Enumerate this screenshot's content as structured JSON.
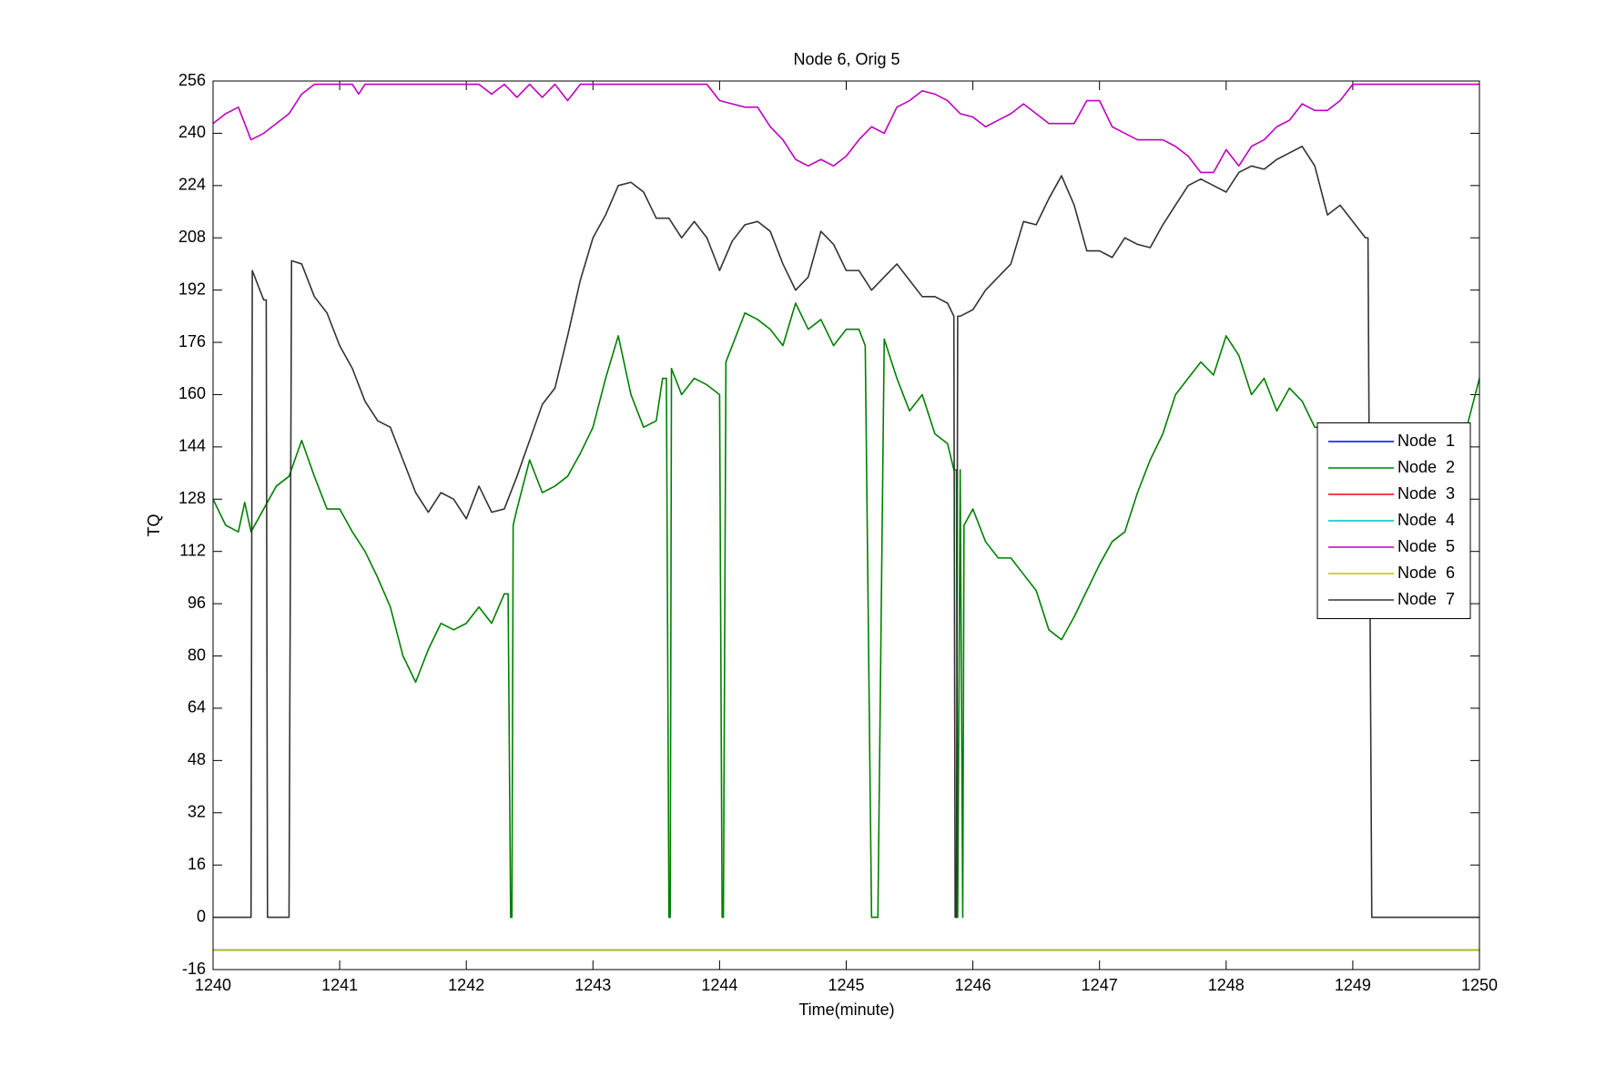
{
  "chart_data": {
    "type": "line",
    "title": "Node 6, Orig 5",
    "xlabel": "Time(minute)",
    "ylabel": "TQ",
    "xlim": [
      1240,
      1250
    ],
    "xticks": [
      1240,
      1241,
      1242,
      1243,
      1244,
      1245,
      1246,
      1247,
      1248,
      1249,
      1250
    ],
    "ylim": [
      -16,
      256
    ],
    "yticks": [
      -16,
      0,
      16,
      32,
      48,
      64,
      80,
      96,
      112,
      128,
      144,
      160,
      176,
      192,
      208,
      224,
      240,
      256
    ],
    "grid": false,
    "legend": "east",
    "series": [
      {
        "name": "Node  1",
        "color": "#0000ff",
        "x": [
          1240,
          1250
        ],
        "values": [
          -10,
          -10
        ]
      },
      {
        "name": "Node  2",
        "color": "#008000",
        "x": [
          1240,
          1240.1,
          1240.2,
          1240.25,
          1240.3,
          1240.4,
          1240.5,
          1240.6,
          1240.7,
          1240.8,
          1240.9,
          1241,
          1241.1,
          1241.2,
          1241.3,
          1241.4,
          1241.5,
          1241.6,
          1241.7,
          1241.8,
          1241.9,
          1242,
          1242.1,
          1242.2,
          1242.3,
          1242.33,
          1242.35,
          1242.36,
          1242.37,
          1242.4,
          1242.5,
          1242.6,
          1242.7,
          1242.8,
          1242.9,
          1243,
          1243.1,
          1243.2,
          1243.3,
          1243.4,
          1243.5,
          1243.55,
          1243.58,
          1243.6,
          1243.61,
          1243.62,
          1243.7,
          1243.8,
          1243.9,
          1244,
          1244.02,
          1244.03,
          1244.05,
          1244.1,
          1244.2,
          1244.3,
          1244.4,
          1244.5,
          1244.6,
          1244.7,
          1244.8,
          1244.9,
          1245,
          1245.1,
          1245.15,
          1245.2,
          1245.25,
          1245.3,
          1245.4,
          1245.5,
          1245.6,
          1245.7,
          1245.8,
          1245.85,
          1245.87,
          1245.88,
          1245.9,
          1245.92,
          1245.93,
          1246,
          1246.1,
          1246.2,
          1246.3,
          1246.4,
          1246.5,
          1246.6,
          1246.7,
          1246.8,
          1246.9,
          1247,
          1247.1,
          1247.2,
          1247.3,
          1247.4,
          1247.5,
          1247.6,
          1247.7,
          1247.8,
          1247.9,
          1248,
          1248.1,
          1248.2,
          1248.3,
          1248.4,
          1248.5,
          1248.6,
          1248.7,
          1248.8,
          1248.9,
          1249,
          1249.1,
          1249.2,
          1249.3,
          1249.5,
          1249.7,
          1249.8,
          1249.9,
          1250
        ],
        "values": [
          128,
          120,
          118,
          127,
          118,
          125,
          132,
          135,
          146,
          135,
          125,
          125,
          118,
          112,
          104,
          95,
          80,
          72,
          82,
          90,
          88,
          90,
          95,
          90,
          99,
          99,
          0,
          0,
          120,
          125,
          140,
          130,
          132,
          135,
          142,
          150,
          165,
          178,
          160,
          150,
          152,
          165,
          165,
          0,
          0,
          168,
          160,
          165,
          163,
          160,
          0,
          0,
          170,
          175,
          185,
          183,
          180,
          175,
          188,
          180,
          183,
          175,
          180,
          180,
          175,
          0,
          0,
          177,
          165,
          155,
          160,
          148,
          145,
          137,
          137,
          0,
          137,
          0,
          120,
          125,
          115,
          110,
          110,
          105,
          100,
          88,
          85,
          92,
          100,
          108,
          115,
          118,
          130,
          140,
          148,
          160,
          165,
          170,
          166,
          178,
          172,
          160,
          165,
          155,
          162,
          158,
          150,
          150,
          150,
          150,
          145,
          148,
          145,
          146,
          144,
          145,
          150,
          165
        ]
      },
      {
        "name": "Node  3",
        "color": "#ff0000",
        "x": [
          1240,
          1250
        ],
        "values": [
          -10,
          -10
        ]
      },
      {
        "name": "Node  4",
        "color": "#00bfbf",
        "x": [
          1240,
          1250
        ],
        "values": [
          -10,
          -10
        ]
      },
      {
        "name": "Node  5",
        "color": "#bf00bf",
        "x": [
          1240,
          1240.1,
          1240.2,
          1240.3,
          1240.4,
          1240.5,
          1240.6,
          1240.7,
          1240.8,
          1241.1,
          1241.15,
          1241.2,
          1242.1,
          1242.2,
          1242.3,
          1242.4,
          1242.5,
          1242.6,
          1242.7,
          1242.8,
          1242.9,
          1243.9,
          1244,
          1244.1,
          1244.2,
          1244.3,
          1244.4,
          1244.5,
          1244.6,
          1244.7,
          1244.8,
          1244.9,
          1245,
          1245.1,
          1245.2,
          1245.3,
          1245.4,
          1245.5,
          1245.6,
          1245.7,
          1245.8,
          1245.9,
          1246,
          1246.1,
          1246.2,
          1246.3,
          1246.4,
          1246.5,
          1246.6,
          1246.7,
          1246.8,
          1246.9,
          1247,
          1247.1,
          1247.2,
          1247.3,
          1247.4,
          1247.5,
          1247.6,
          1247.7,
          1247.8,
          1247.9,
          1248,
          1248.1,
          1248.2,
          1248.3,
          1248.4,
          1248.5,
          1248.6,
          1248.7,
          1248.8,
          1248.9,
          1249,
          1250
        ],
        "values": [
          243,
          246,
          248,
          238,
          240,
          243,
          246,
          252,
          255,
          255,
          252,
          255,
          255,
          252,
          255,
          251,
          255,
          251,
          255,
          250,
          255,
          255,
          250,
          249,
          248,
          248,
          242,
          238,
          232,
          230,
          232,
          230,
          233,
          238,
          242,
          240,
          248,
          250,
          253,
          252,
          250,
          246,
          245,
          242,
          244,
          246,
          249,
          246,
          243,
          243,
          243,
          250,
          250,
          242,
          240,
          238,
          238,
          238,
          236,
          233,
          228,
          228,
          235,
          230,
          236,
          238,
          242,
          244,
          249,
          247,
          247,
          250,
          255,
          255
        ]
      },
      {
        "name": "Node  6",
        "color": "#bfbf00",
        "x": [
          1240,
          1250
        ],
        "values": [
          -10,
          -10
        ]
      },
      {
        "name": "Node  7",
        "color": "#333333",
        "x": [
          1240,
          1240.3,
          1240.31,
          1240.4,
          1240.42,
          1240.43,
          1240.6,
          1240.62,
          1240.7,
          1240.8,
          1240.9,
          1241,
          1241.1,
          1241.2,
          1241.3,
          1241.4,
          1241.5,
          1241.6,
          1241.7,
          1241.8,
          1241.9,
          1242,
          1242.1,
          1242.2,
          1242.3,
          1242.4,
          1242.5,
          1242.6,
          1242.7,
          1242.8,
          1242.9,
          1243,
          1243.1,
          1243.2,
          1243.3,
          1243.4,
          1243.5,
          1243.6,
          1243.7,
          1243.8,
          1243.9,
          1244,
          1244.1,
          1244.2,
          1244.3,
          1244.4,
          1244.5,
          1244.6,
          1244.7,
          1244.8,
          1244.9,
          1245,
          1245.1,
          1245.2,
          1245.3,
          1245.4,
          1245.5,
          1245.6,
          1245.7,
          1245.8,
          1245.85,
          1245.86,
          1245.87,
          1245.88,
          1245.9,
          1246,
          1246.1,
          1246.2,
          1246.3,
          1246.4,
          1246.5,
          1246.6,
          1246.7,
          1246.8,
          1246.9,
          1247,
          1247.1,
          1247.2,
          1247.3,
          1247.4,
          1247.5,
          1247.6,
          1247.7,
          1247.8,
          1247.9,
          1248,
          1248.1,
          1248.2,
          1248.3,
          1248.4,
          1248.5,
          1248.6,
          1248.7,
          1248.8,
          1248.9,
          1249,
          1249.1,
          1249.12,
          1249.15,
          1249.2,
          1250
        ],
        "values": [
          0,
          0,
          198,
          189,
          189,
          0,
          0,
          201,
          200,
          190,
          185,
          175,
          168,
          158,
          152,
          150,
          140,
          130,
          124,
          130,
          128,
          122,
          132,
          124,
          125,
          135,
          146,
          157,
          162,
          178,
          195,
          208,
          215,
          224,
          225,
          222,
          214,
          214,
          208,
          213,
          208,
          198,
          207,
          212,
          213,
          210,
          200,
          192,
          196,
          210,
          206,
          198,
          198,
          192,
          196,
          200,
          195,
          190,
          190,
          188,
          184,
          0,
          0,
          184,
          184,
          186,
          192,
          196,
          200,
          213,
          212,
          220,
          227,
          218,
          204,
          204,
          202,
          208,
          206,
          205,
          212,
          218,
          224,
          226,
          224,
          222,
          228,
          230,
          229,
          232,
          234,
          236,
          230,
          215,
          218,
          213,
          208,
          208,
          0,
          0,
          0
        ]
      }
    ]
  }
}
